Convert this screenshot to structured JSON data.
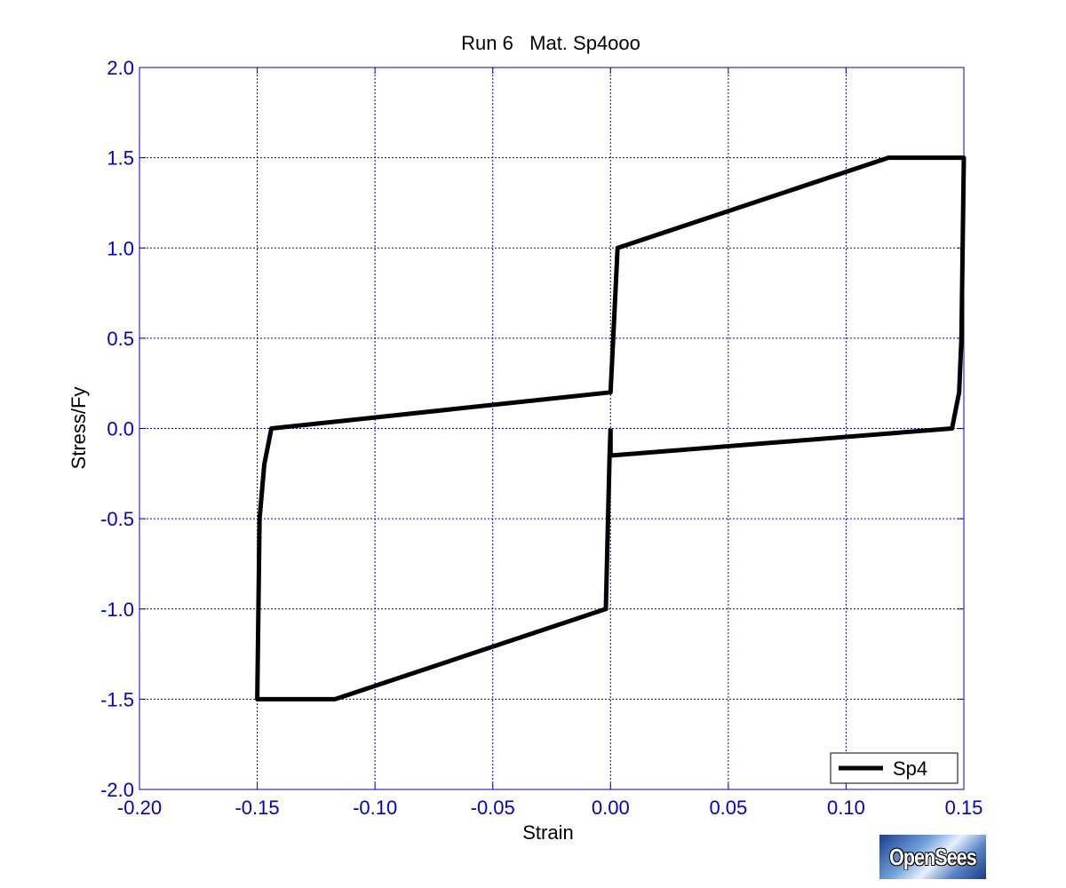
{
  "chart_data": {
    "type": "line",
    "title": "Run 6   Mat. Sp4ooo",
    "xlabel": "Strain",
    "ylabel": "Stress/Fy",
    "xlim": [
      -0.2,
      0.15
    ],
    "ylim": [
      -2.0,
      2.0
    ],
    "xticks": [
      -0.2,
      -0.15,
      -0.1,
      -0.05,
      0.0,
      0.05,
      0.1,
      0.15
    ],
    "yticks": [
      -2.0,
      -1.5,
      -1.0,
      -0.5,
      0.0,
      0.5,
      1.0,
      1.5,
      2.0
    ],
    "xtick_labels": [
      "-0.20",
      "-0.15",
      "-0.10",
      "-0.05",
      "0.00",
      "0.05",
      "0.10",
      "0.15"
    ],
    "ytick_labels": [
      "-2.0",
      "-1.5",
      "-1.0",
      "-0.5",
      "0.0",
      "0.5",
      "1.0",
      "1.5",
      "2.0"
    ],
    "grid": true,
    "legend_position": "bottom-right",
    "series": [
      {
        "name": "Sp4",
        "color": "#000000",
        "x": [
          0.0,
          -0.0004,
          -0.002,
          -0.117,
          -0.15,
          -0.149,
          -0.147,
          -0.144,
          0.0,
          0.0015,
          0.003,
          0.118,
          0.15,
          0.149,
          0.148,
          0.145,
          0.0,
          0.0
        ],
        "y": [
          0.0,
          -0.15,
          -1.0,
          -1.5,
          -1.5,
          -0.5,
          -0.2,
          0.0,
          0.2,
          0.6,
          1.0,
          1.5,
          1.5,
          0.5,
          0.2,
          0.0,
          -0.15,
          0.0
        ]
      }
    ]
  },
  "colors": {
    "axis": "#0000cc",
    "grid": "#0000cc",
    "series": "#000000"
  },
  "logo": {
    "text": "OpenSees"
  }
}
